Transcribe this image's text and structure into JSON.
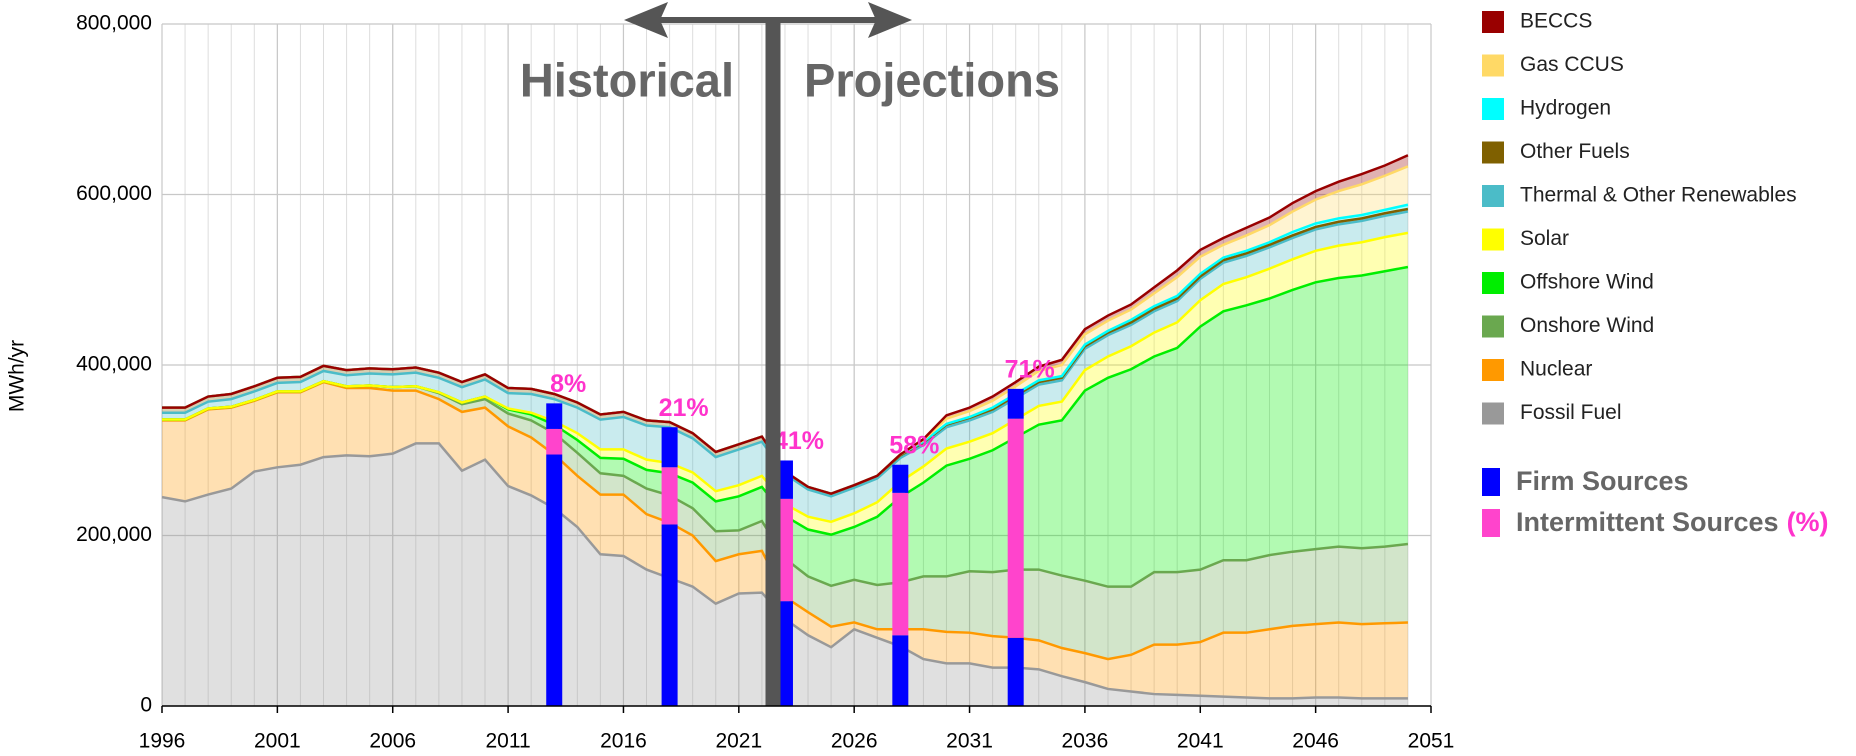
{
  "chart_data": {
    "type": "stacked_area",
    "y_label": "MWh/yr",
    "annotations": {
      "left": "Historical",
      "right": "Projections"
    },
    "xlim": [
      1996,
      2051
    ],
    "xticks": [
      1996,
      2001,
      2006,
      2011,
      2016,
      2021,
      2026,
      2031,
      2036,
      2041,
      2046,
      2051
    ],
    "ylim": [
      0,
      800000
    ],
    "yticks": [
      0,
      {
        "value": 200000,
        "label": "200,000"
      },
      {
        "value": 400000,
        "label": "400,000"
      },
      {
        "value": 600000,
        "label": "600,000"
      },
      {
        "value": 800000,
        "label": "800,000"
      }
    ],
    "grid": true,
    "x": [
      1996,
      1997,
      1998,
      1999,
      2000,
      2001,
      2002,
      2003,
      2004,
      2005,
      2006,
      2007,
      2008,
      2009,
      2010,
      2011,
      2012,
      2013,
      2014,
      2015,
      2016,
      2017,
      2018,
      2019,
      2020,
      2021,
      2022,
      2023,
      2024,
      2025,
      2026,
      2027,
      2028,
      2029,
      2030,
      2031,
      2032,
      2033,
      2034,
      2035,
      2036,
      2037,
      2038,
      2039,
      2040,
      2041,
      2042,
      2043,
      2044,
      2045,
      2046,
      2047,
      2048,
      2049,
      2050
    ],
    "series": [
      {
        "name": "Fossil Fuel",
        "color": "#999999",
        "values": [
          245000,
          240000,
          248000,
          255000,
          275000,
          280000,
          283000,
          292000,
          294000,
          293000,
          296000,
          308000,
          308000,
          276000,
          289000,
          258000,
          247000,
          232000,
          210000,
          178000,
          176000,
          160000,
          150000,
          140000,
          120000,
          132000,
          133000,
          102000,
          83000,
          69000,
          90000,
          80000,
          70000,
          55000,
          50000,
          50000,
          45000,
          45000,
          43000,
          35000,
          28000,
          20000,
          17000,
          14000,
          13000,
          12000,
          11000,
          10000,
          9000,
          9000,
          10000,
          10000,
          9000,
          9000,
          9000
        ]
      },
      {
        "name": "Nuclear",
        "color": "#ff9900",
        "values": [
          90000,
          95000,
          100000,
          95000,
          83000,
          88000,
          85000,
          88000,
          79000,
          80000,
          74000,
          62000,
          52000,
          69000,
          61000,
          70000,
          68000,
          63000,
          60000,
          70000,
          72000,
          65000,
          65000,
          60000,
          50000,
          46000,
          49000,
          26000,
          27000,
          24000,
          8000,
          10000,
          20000,
          35000,
          37000,
          36000,
          37000,
          35000,
          34000,
          33000,
          34000,
          35000,
          43000,
          58000,
          59000,
          63000,
          75000,
          76000,
          81000,
          85000,
          86000,
          88000,
          87000,
          88000,
          89000
        ]
      },
      {
        "name": "Onshore Wind",
        "color": "#6aa84f",
        "values": [
          1000,
          1000,
          1000,
          1000,
          1000,
          1000,
          1000,
          1000,
          2000,
          3000,
          4000,
          5000,
          7000,
          9000,
          10000,
          15000,
          20000,
          25000,
          27000,
          25000,
          22000,
          30000,
          32000,
          32000,
          35000,
          28000,
          35000,
          45000,
          42000,
          48000,
          50000,
          52000,
          55000,
          62000,
          65000,
          72000,
          75000,
          80000,
          83000,
          85000,
          85000,
          85000,
          80000,
          85000,
          85000,
          85000,
          85000,
          85000,
          87000,
          87000,
          88000,
          89000,
          89000,
          90000,
          92000
        ]
      },
      {
        "name": "Offshore Wind",
        "color": "#00ee00",
        "values": [
          0,
          0,
          0,
          0,
          0,
          0,
          0,
          0,
          0,
          0,
          0,
          0,
          1000,
          2000,
          3000,
          5000,
          7000,
          10000,
          15000,
          18000,
          20000,
          22000,
          26000,
          30000,
          35000,
          40000,
          40000,
          50000,
          55000,
          60000,
          62000,
          80000,
          100000,
          110000,
          130000,
          132000,
          143000,
          155000,
          170000,
          182000,
          223000,
          245000,
          255000,
          253000,
          263000,
          285000,
          292000,
          299000,
          301000,
          307000,
          313000,
          315000,
          320000,
          323000,
          325000
        ]
      },
      {
        "name": "Solar",
        "color": "#ffff00",
        "values": [
          0,
          0,
          0,
          0,
          0,
          0,
          0,
          0,
          0,
          0,
          0,
          0,
          0,
          0,
          0,
          1000,
          2000,
          4000,
          8000,
          10000,
          11000,
          12000,
          12000,
          12000,
          12000,
          13000,
          13000,
          14000,
          15000,
          15000,
          16000,
          17000,
          18000,
          19000,
          20000,
          20000,
          20000,
          21000,
          22000,
          22000,
          24000,
          25000,
          27000,
          28000,
          30000,
          31000,
          32000,
          33000,
          35000,
          36000,
          37000,
          38000,
          39000,
          40000,
          40000
        ]
      },
      {
        "name": "Thermal & Other Renewables",
        "color": "#4bbcc8",
        "values": [
          8000,
          8000,
          8000,
          9000,
          10000,
          10000,
          11000,
          12000,
          13000,
          14000,
          15000,
          16000,
          17000,
          18000,
          20000,
          18000,
          22000,
          26000,
          30000,
          35000,
          38000,
          40000,
          42000,
          40000,
          40000,
          42000,
          40000,
          35000,
          32000,
          30000,
          30000,
          28000,
          28000,
          25000,
          25000,
          25000,
          25000,
          25000,
          25000,
          25000,
          25000,
          25000,
          25000,
          25000,
          25000,
          25000,
          25000,
          25000,
          25000,
          25000,
          25000,
          25000,
          25000,
          25000,
          25000
        ]
      },
      {
        "name": "Other Fuels",
        "color": "#7f6000",
        "values": [
          6000,
          6000,
          6000,
          6000,
          6000,
          6000,
          6000,
          6000,
          6000,
          6000,
          6000,
          6000,
          6000,
          6000,
          6000,
          6000,
          6000,
          6000,
          6000,
          6000,
          6000,
          6000,
          6000,
          6000,
          6000,
          6000,
          6000,
          3000,
          3000,
          3000,
          3000,
          3000,
          3000,
          3000,
          3000,
          3000,
          3000,
          3000,
          3000,
          3000,
          3000,
          3000,
          3000,
          3000,
          3000,
          3000,
          3000,
          3000,
          3000,
          3000,
          3000,
          3000,
          3000,
          3000,
          3000
        ]
      },
      {
        "name": "Hydrogen",
        "color": "#00ffff",
        "values": [
          0,
          0,
          0,
          0,
          0,
          0,
          0,
          0,
          0,
          0,
          0,
          0,
          0,
          0,
          0,
          0,
          0,
          0,
          0,
          0,
          0,
          0,
          0,
          0,
          0,
          0,
          0,
          0,
          0,
          0,
          0,
          0,
          1000,
          1000,
          1000,
          1000,
          2000,
          2000,
          2000,
          2000,
          2000,
          2000,
          3000,
          3000,
          3000,
          3000,
          3000,
          3000,
          3000,
          4000,
          4000,
          4000,
          4000,
          4000,
          5000
        ]
      },
      {
        "name": "Gas CCUS",
        "color": "#ffd966",
        "values": [
          0,
          0,
          0,
          0,
          0,
          0,
          0,
          0,
          0,
          0,
          0,
          0,
          0,
          0,
          0,
          0,
          0,
          0,
          0,
          0,
          0,
          0,
          0,
          0,
          0,
          0,
          0,
          0,
          0,
          0,
          0,
          0,
          0,
          2000,
          6000,
          7000,
          8000,
          9000,
          11000,
          13000,
          12000,
          12000,
          12000,
          15000,
          22000,
          20000,
          15000,
          18000,
          20000,
          24000,
          28000,
          32000,
          36000,
          40000,
          45000
        ]
      },
      {
        "name": "BECCS",
        "color": "#990000",
        "values": [
          0,
          0,
          0,
          0,
          0,
          0,
          0,
          0,
          0,
          0,
          0,
          0,
          0,
          0,
          0,
          0,
          0,
          0,
          0,
          0,
          0,
          0,
          0,
          0,
          0,
          0,
          0,
          0,
          0,
          0,
          0,
          0,
          0,
          1000,
          4000,
          4000,
          5000,
          5000,
          5000,
          6000,
          6000,
          6000,
          6000,
          7000,
          8000,
          8000,
          8000,
          9000,
          9000,
          10000,
          10000,
          11000,
          12000,
          12000,
          13000
        ]
      }
    ],
    "share_bars": {
      "x": [
        2013,
        2018,
        2023,
        2028,
        2033
      ],
      "firm_name": "Firm Sources",
      "firm_color": "#0000ff",
      "intermittent_name": "Intermittent Sources",
      "intermittent_unit": "(%)",
      "intermittent_color": "#ff44cc",
      "firm_lower": [
        295000,
        213000,
        123000,
        83000,
        80000
      ],
      "intermittent": [
        30000,
        67000,
        120000,
        167000,
        257000
      ],
      "firm_upper": [
        30000,
        47000,
        45000,
        33000,
        35000
      ],
      "values": [
        8,
        21,
        41,
        58,
        71
      ],
      "value_labels": [
        "8%",
        "21%",
        "41%",
        "58%",
        "71%"
      ]
    }
  }
}
